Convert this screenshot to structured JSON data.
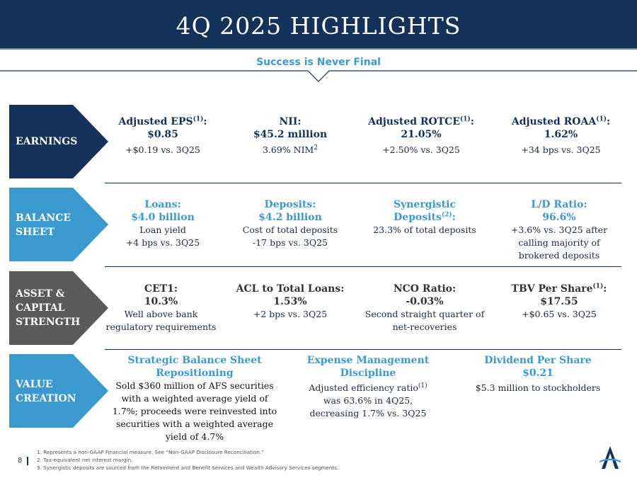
{
  "title": "4Q 2025 HIGHLIGHTS",
  "subtitle": "Success is Never Final",
  "colors": {
    "navy": "#14315a",
    "blue": "#3a9ad0",
    "gray": "#5a5a5a"
  },
  "sections": {
    "earnings": {
      "label": "EARNINGS"
    },
    "balance": {
      "label1": "BALANCE",
      "label2": "SHEET"
    },
    "asset": {
      "label1": "ASSET &",
      "label2": "CAPITAL",
      "label3": "STRENGTH"
    },
    "value": {
      "label1": "VALUE",
      "label2": "CREATION"
    }
  },
  "earnings": {
    "eps": {
      "title": "Adjusted EPS",
      "sup": "(1)",
      "colon": ":",
      "value": "$0.85",
      "detail": "+$0.19 vs. 3Q25"
    },
    "nii": {
      "title": "NII:",
      "value": "$45.2 million",
      "detail": "3.69% NIM",
      "detail_sup": "2"
    },
    "rotce": {
      "title": "Adjusted ROTCE",
      "sup": "(1)",
      "colon": ":",
      "value": "21.05%",
      "detail": "+2.50% vs. 3Q25"
    },
    "roaa": {
      "title": "Adjusted ROAA",
      "sup": "(1)",
      "colon": ":",
      "value": "1.62%",
      "detail": "+34 bps vs. 3Q25"
    }
  },
  "balance": {
    "loans": {
      "title": "Loans:",
      "value": "$4.0 billion",
      "detail1": "Loan yield",
      "detail2": "+4 bps vs. 3Q25"
    },
    "deposits": {
      "title": "Deposits:",
      "value": "$4.2 billion",
      "detail1": "Cost of total deposits",
      "detail2": "-17 bps vs. 3Q25"
    },
    "synergistic": {
      "title1": "Synergistic",
      "title2": "Deposits",
      "sup": "(2)",
      "colon": ":",
      "detail": "23.3% of total deposits"
    },
    "ld": {
      "title": "L/D Ratio:",
      "value": "96.6%",
      "detail1": "+3.6% vs. 3Q25 after",
      "detail2": "calling majority of",
      "detail3": "brokered deposits"
    }
  },
  "asset": {
    "cet1": {
      "title": "CET1:",
      "value": "10.3%",
      "detail1": "Well above bank",
      "detail2": "regulatory requirements"
    },
    "acl": {
      "title": "ACL to Total Loans:",
      "value": "1.53%",
      "detail": "+2 bps vs. 3Q25"
    },
    "nco": {
      "title": "NCO Ratio:",
      "value": "-0.03%",
      "detail1": "Second straight quarter of",
      "detail2": "net-recoveries"
    },
    "tbv": {
      "title": "TBV Per Share",
      "sup": "(1)",
      "colon": ":",
      "value": "$17.55",
      "detail": "+$0.65 vs. 3Q25"
    }
  },
  "value": {
    "repositioning": {
      "title1": "Strategic Balance Sheet",
      "title2": "Repositioning",
      "detail1": "Sold $360 million of AFS securities",
      "detail2": "with a weighted average yield of",
      "detail3": "1.7%; proceeds were reinvested into",
      "detail4": "securities with a weighted average",
      "detail5": "yield of 4.7%"
    },
    "expense": {
      "title1": "Expense Management",
      "title2": "Discipline",
      "detail1": "Adjusted efficiency ratio",
      "detail1_sup": "(1)",
      "detail2": "was 63.6% in 4Q25,",
      "detail3": "decreasing 1.7% vs. 3Q25"
    },
    "dividend": {
      "title1": "Dividend Per Share",
      "title2": "$0.21",
      "detail": "$5.3 million to stockholders"
    }
  },
  "footnotes": {
    "f1": "1. Represents a non-GAAP Financial measure. See “Non-GAAP Disclosure Reconciliation.”",
    "f2": "2. Tax-equivalent net interest margin.",
    "f3": "3. Synergistic deposits are sourced from the Retirement and Benefit Services and Wealth Advisory Services segments."
  },
  "page_number": "8"
}
